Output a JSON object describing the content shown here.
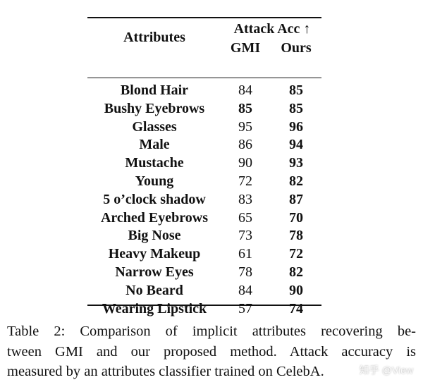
{
  "table": {
    "header": {
      "attributes": "Attributes",
      "group": "Attack Acc ↑",
      "gmi": "GMI",
      "ours": "Ours"
    },
    "rows": [
      {
        "attribute": "Blond Hair",
        "gmi": "84",
        "ours": "85",
        "gmi_bold": false,
        "ours_bold": true
      },
      {
        "attribute": "Bushy Eyebrows",
        "gmi": "85",
        "ours": "85",
        "gmi_bold": true,
        "ours_bold": true
      },
      {
        "attribute": "Glasses",
        "gmi": "95",
        "ours": "96",
        "gmi_bold": false,
        "ours_bold": true
      },
      {
        "attribute": "Male",
        "gmi": "86",
        "ours": "94",
        "gmi_bold": false,
        "ours_bold": true
      },
      {
        "attribute": "Mustache",
        "gmi": "90",
        "ours": "93",
        "gmi_bold": false,
        "ours_bold": true
      },
      {
        "attribute": "Young",
        "gmi": "72",
        "ours": "82",
        "gmi_bold": false,
        "ours_bold": true
      },
      {
        "attribute": "5 o’clock shadow",
        "gmi": "83",
        "ours": "87",
        "gmi_bold": false,
        "ours_bold": true
      },
      {
        "attribute": "Arched Eyebrows",
        "gmi": "65",
        "ours": "70",
        "gmi_bold": false,
        "ours_bold": true
      },
      {
        "attribute": "Big Nose",
        "gmi": "73",
        "ours": "78",
        "gmi_bold": false,
        "ours_bold": true
      },
      {
        "attribute": "Heavy Makeup",
        "gmi": "61",
        "ours": "72",
        "gmi_bold": false,
        "ours_bold": true
      },
      {
        "attribute": "Narrow Eyes",
        "gmi": "78",
        "ours": "82",
        "gmi_bold": false,
        "ours_bold": true
      },
      {
        "attribute": "No Beard",
        "gmi": "84",
        "ours": "90",
        "gmi_bold": false,
        "ours_bold": true
      },
      {
        "attribute": "Wearing Lipstick",
        "gmi": "57",
        "ours": "74",
        "gmi_bold": false,
        "ours_bold": true
      }
    ]
  },
  "caption": {
    "lines": [
      "Table 2:  Comparison of implicit attributes recovering be-",
      "tween GMI and our proposed method.  Attack accuracy is",
      "measured by an attributes classifier trained on CelebA."
    ]
  },
  "watermark": "知乎 @View"
}
